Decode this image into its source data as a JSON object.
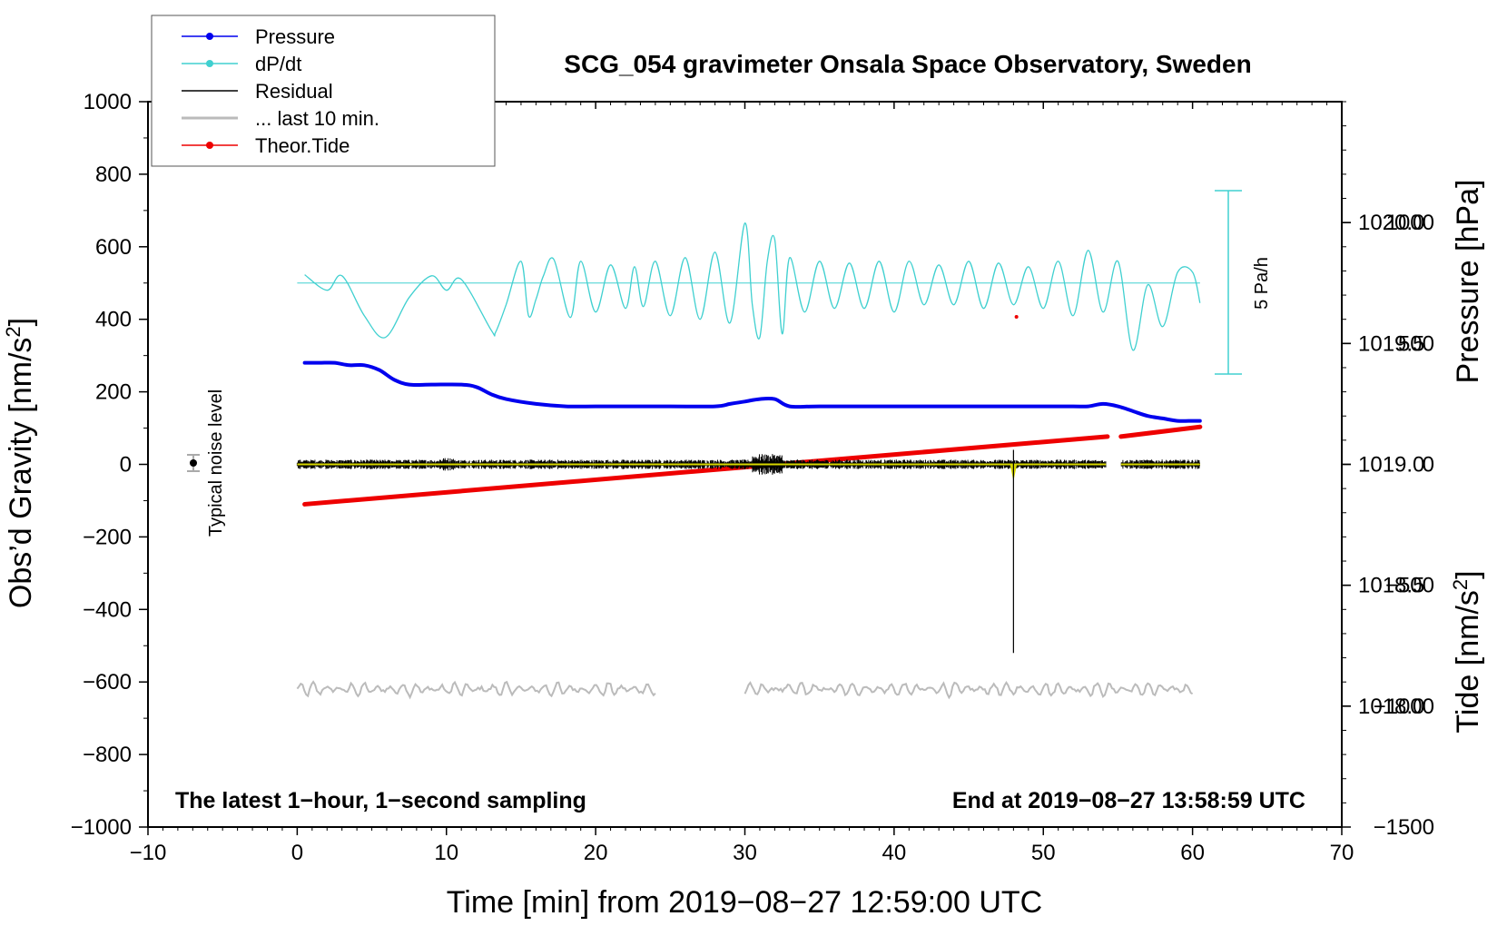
{
  "chart_data": {
    "type": "line",
    "title": "SCG_054 gravimeter Onsala Space Observatory, Sweden",
    "xlabel": "Time [min] from 2019−08−27 12:59:00 UTC",
    "ylabel_left": "Obs’d Gravity [nm/s",
    "ylabel_left_sup": "2",
    "ylabel_left_end": "]",
    "ylabel_right_pressure": "Pressure [hPa]",
    "ylabel_right_tide": "Tide [nm/s",
    "ylabel_right_tide_sup": "2",
    "ylabel_right_tide_end": "]",
    "xlim": [
      -10,
      70
    ],
    "ylim_left": [
      -1000,
      1000
    ],
    "pressure_ylim": [
      1017.5,
      1020.5
    ],
    "tide_ylim": [
      -1500,
      1500
    ],
    "x_ticks": [
      "−10",
      "0",
      "10",
      "20",
      "30",
      "40",
      "50",
      "60",
      "70"
    ],
    "y_ticks_left": [
      "1000",
      "800",
      "600",
      "400",
      "200",
      "0",
      "−200",
      "−400",
      "−600",
      "−800",
      "−1000"
    ],
    "pressure_ticks": [
      "1020.0",
      "1019.5",
      "1019.0",
      "1018.5",
      "1018.0"
    ],
    "tide_ticks": [
      "1000",
      "500",
      "0",
      "−500",
      "−1000",
      "−1500"
    ],
    "bottom_left_note": "The latest 1−hour, 1−second sampling",
    "bottom_right_note": "End at 2019−08−27 13:58:59 UTC",
    "noise_label": "Typical noise level",
    "dpdt_scale_label": "5 Pa/h",
    "legend": [
      {
        "name": "Pressure",
        "color": "#0000ee",
        "style": "line-dot"
      },
      {
        "name": "dP/dt",
        "color": "#40d0d0",
        "style": "line-dot"
      },
      {
        "name": "Residual",
        "color": "#000000",
        "style": "line"
      },
      {
        "name": "... last 10 min.",
        "color": "#bbbbbb",
        "style": "line"
      },
      {
        "name": "Theor.Tide",
        "color": "#ee0000",
        "style": "line-dot"
      }
    ],
    "colors": {
      "pressure": "#0000ee",
      "dpdt": "#40d0d0",
      "residual": "#000000",
      "residual_smooth": "#d8d800",
      "last10": "#bbbbbb",
      "tide": "#ee0000"
    },
    "series": [
      {
        "name": "Pressure",
        "axis": "pressure_hPa",
        "x": [
          0.5,
          1.5,
          2.5,
          3.5,
          4.5,
          5.5,
          6.5,
          7.5,
          9,
          11,
          12,
          13,
          14,
          16,
          18,
          20,
          22,
          25,
          28,
          29,
          30,
          31,
          32,
          33,
          35,
          40,
          45,
          50,
          52,
          53,
          54,
          55,
          56,
          57,
          58,
          59,
          60,
          60.5
        ],
        "values": [
          1019.42,
          1019.42,
          1019.42,
          1019.41,
          1019.41,
          1019.39,
          1019.35,
          1019.33,
          1019.33,
          1019.33,
          1019.32,
          1019.29,
          1019.27,
          1019.25,
          1019.24,
          1019.24,
          1019.24,
          1019.24,
          1019.24,
          1019.25,
          1019.26,
          1019.27,
          1019.27,
          1019.24,
          1019.24,
          1019.24,
          1019.24,
          1019.24,
          1019.24,
          1019.24,
          1019.25,
          1019.24,
          1019.22,
          1019.2,
          1019.19,
          1019.18,
          1019.18,
          1019.18
        ]
      },
      {
        "name": "dP/dt",
        "baseline": 500,
        "x": [
          0.5,
          2,
          3,
          4.5,
          5.9,
          7.5,
          9,
          10,
          11,
          13,
          13.3,
          14,
          15,
          15.5,
          16,
          16.5,
          17.2,
          18.3,
          19,
          20,
          21,
          22,
          22.6,
          23.2,
          24,
          25,
          26,
          27,
          28,
          29,
          30,
          30.5,
          31,
          31.5,
          32,
          32.5,
          33,
          34,
          35,
          36,
          37,
          38,
          39,
          40,
          41,
          42,
          43,
          44,
          45,
          46,
          47,
          48,
          49,
          50,
          51,
          52,
          53,
          54,
          55,
          56,
          57,
          58,
          59,
          60,
          60.5
        ],
        "values": [
          523,
          480,
          520,
          410,
          350,
          460,
          520,
          480,
          510,
          370,
          365,
          440,
          560,
          410,
          455,
          520,
          565,
          405,
          560,
          420,
          550,
          430,
          545,
          435,
          560,
          410,
          570,
          400,
          585,
          390,
          665,
          440,
          350,
          560,
          620,
          360,
          570,
          420,
          560,
          430,
          555,
          430,
          560,
          420,
          560,
          440,
          550,
          440,
          560,
          430,
          555,
          440,
          545,
          430,
          560,
          410,
          590,
          420,
          560,
          315,
          495,
          380,
          530,
          530,
          445
        ]
      },
      {
        "name": "Residual",
        "baseline": 0,
        "spike": {
          "x": 48,
          "min": -520,
          "max": 40
        },
        "gaps": [
          [
            54.2,
            55.2
          ]
        ]
      },
      {
        "name": "... last 10 min.",
        "baseline": -620,
        "segments": [
          [
            0,
            24
          ],
          [
            30,
            60
          ]
        ]
      },
      {
        "name": "Theor.Tide",
        "axis": "tide_nm_s2",
        "x": [
          0.5,
          54.3,
          55.2,
          60.5
        ],
        "values": [
          -165,
          115,
          115,
          155
        ],
        "outlier": {
          "x": 48.2,
          "value": 610
        }
      }
    ]
  }
}
